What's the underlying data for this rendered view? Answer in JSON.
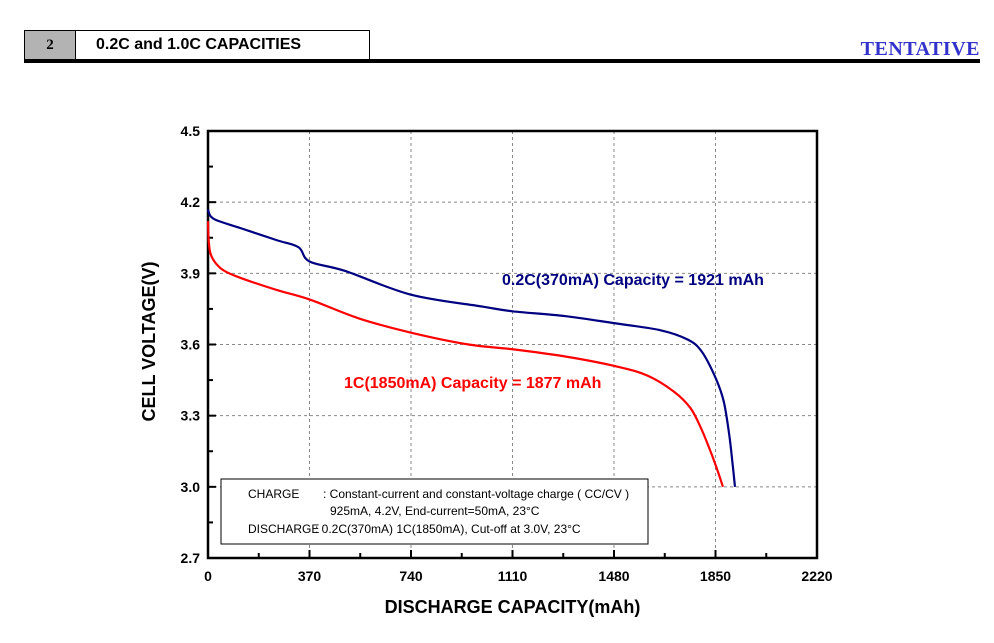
{
  "header": {
    "section_number": "2",
    "section_title": "0.2C and 1.0C CAPACITIES",
    "status_label": "TENTATIVE"
  },
  "chart_data": {
    "type": "line",
    "title": "",
    "xlabel": "DISCHARGE CAPACITY(mAh)",
    "ylabel": "CELL VOLTAGE(V)",
    "xlim": [
      0,
      2220
    ],
    "ylim": [
      2.7,
      4.5
    ],
    "x_ticks": [
      0,
      370,
      740,
      1110,
      1480,
      1850,
      2220
    ],
    "y_ticks": [
      "2.7",
      "3.0",
      "3.3",
      "3.6",
      "3.9",
      "4.2",
      "4.5"
    ],
    "grid": true,
    "series": [
      {
        "name": "0.2C(370mA)",
        "color": "#000080",
        "annotation": "0.2C(370mA) Capacity = 1921 mAh",
        "x": [
          0,
          10,
          40,
          120,
          250,
          330,
          370,
          500,
          740,
          1000,
          1110,
          1300,
          1480,
          1650,
          1750,
          1800,
          1850,
          1880,
          1900,
          1912,
          1921
        ],
        "y": [
          4.17,
          4.14,
          4.12,
          4.09,
          4.04,
          4.01,
          3.95,
          3.91,
          3.81,
          3.76,
          3.74,
          3.72,
          3.69,
          3.66,
          3.62,
          3.57,
          3.46,
          3.36,
          3.22,
          3.1,
          3.0
        ]
      },
      {
        "name": "1C(1850mA)",
        "color": "#ff0000",
        "annotation": "1C(1850mA) Capacity = 1877 mAh",
        "x": [
          0,
          3,
          10,
          30,
          60,
          120,
          250,
          370,
          550,
          740,
          950,
          1110,
          1300,
          1480,
          1600,
          1700,
          1760,
          1800,
          1835,
          1860,
          1877
        ],
        "y": [
          4.12,
          4.03,
          3.98,
          3.94,
          3.91,
          3.88,
          3.83,
          3.79,
          3.71,
          3.65,
          3.6,
          3.58,
          3.55,
          3.51,
          3.47,
          3.4,
          3.33,
          3.24,
          3.14,
          3.06,
          3.0
        ]
      }
    ],
    "legend_box": {
      "lines": [
        {
          "label": "CHARGE",
          "text": ": Constant-current and constant-voltage charge ( CC/CV )"
        },
        {
          "label": "",
          "text": "925mA, 4.2V, End-current=50mA, 23°C"
        },
        {
          "label": "DISCHARGE",
          "text": ": 0.2C(370mA) 1C(1850mA), Cut-off at 3.0V, 23°C"
        }
      ],
      "placement": "bottom-left"
    }
  }
}
